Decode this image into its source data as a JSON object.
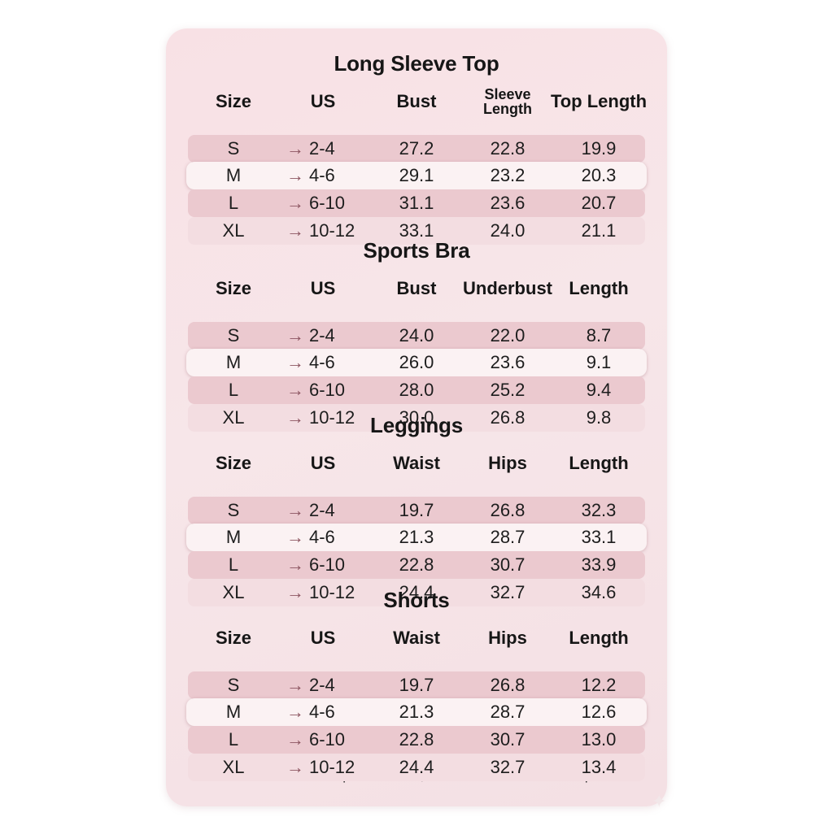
{
  "sections": [
    {
      "title": "Long Sleeve Top",
      "headers": [
        "Size",
        "US",
        "Bust",
        "Sleeve Length",
        "Top Length"
      ],
      "rows": [
        {
          "size": "S",
          "us": "2-4",
          "c1": "27.2",
          "c2": "22.8",
          "c3": "19.9"
        },
        {
          "size": "M",
          "us": "4-6",
          "c1": "29.1",
          "c2": "23.2",
          "c3": "20.3"
        },
        {
          "size": "L",
          "us": "6-10",
          "c1": "31.1",
          "c2": "23.6",
          "c3": "20.7"
        },
        {
          "size": "XL",
          "us": "10-12",
          "c1": "33.1",
          "c2": "24.0",
          "c3": "21.1"
        }
      ]
    },
    {
      "title": "Sports Bra",
      "headers": [
        "Size",
        "US",
        "Bust",
        "Underbust",
        "Length"
      ],
      "rows": [
        {
          "size": "S",
          "us": "2-4",
          "c1": "24.0",
          "c2": "22.0",
          "c3": "8.7"
        },
        {
          "size": "M",
          "us": "4-6",
          "c1": "26.0",
          "c2": "23.6",
          "c3": "9.1"
        },
        {
          "size": "L",
          "us": "6-10",
          "c1": "28.0",
          "c2": "25.2",
          "c3": "9.4"
        },
        {
          "size": "XL",
          "us": "10-12",
          "c1": "30.0",
          "c2": "26.8",
          "c3": "9.8"
        }
      ]
    },
    {
      "title": "Leggings",
      "headers": [
        "Size",
        "US",
        "Waist",
        "Hips",
        "Length"
      ],
      "rows": [
        {
          "size": "S",
          "us": "2-4",
          "c1": "19.7",
          "c2": "26.8",
          "c3": "32.3"
        },
        {
          "size": "M",
          "us": "4-6",
          "c1": "21.3",
          "c2": "28.7",
          "c3": "33.1"
        },
        {
          "size": "L",
          "us": "6-10",
          "c1": "22.8",
          "c2": "30.7",
          "c3": "33.9"
        },
        {
          "size": "XL",
          "us": "10-12",
          "c1": "24.4",
          "c2": "32.7",
          "c3": "34.6"
        }
      ]
    },
    {
      "title": "Shorts",
      "headers": [
        "Size",
        "US",
        "Waist",
        "Hips",
        "Length"
      ],
      "rows": [
        {
          "size": "S",
          "us": "2-4",
          "c1": "19.7",
          "c2": "26.8",
          "c3": "12.2"
        },
        {
          "size": "M",
          "us": "4-6",
          "c1": "21.3",
          "c2": "28.7",
          "c3": "12.6"
        },
        {
          "size": "L",
          "us": "6-10",
          "c1": "22.8",
          "c2": "30.7",
          "c3": "13.0"
        },
        {
          "size": "XL",
          "us": "10-12",
          "c1": "24.4",
          "c2": "32.7",
          "c3": "13.4"
        }
      ]
    }
  ],
  "arrow_glyph": "→",
  "footer": "*Fits true to size. Size up for comfort, size down for a more sculpted fit.*",
  "colors": {
    "card_background": "#f7e4e8",
    "row_dark": "#ebc9cf",
    "row_light": "#f3dde1",
    "row_highlight": "#fbf2f3",
    "arrow": "#8c5560"
  },
  "icons": {
    "arrow": "arrow-right-icon",
    "corner": "sparkle-icon"
  }
}
